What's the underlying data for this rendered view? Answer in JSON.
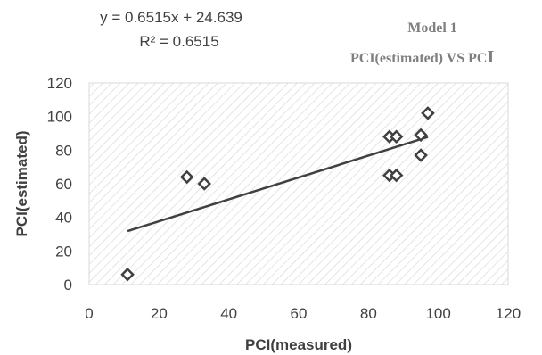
{
  "chart_data": {
    "type": "scatter",
    "title_line1": "Model 1",
    "title_line2": "PCI(estimated) VS PC",
    "title_line2_tail": "I",
    "xlabel": "PCI(measured)",
    "ylabel": "PCI(estimated)",
    "xlim": [
      0,
      120
    ],
    "ylim": [
      0,
      120
    ],
    "xticks": [
      "0",
      "20",
      "40",
      "60",
      "80",
      "100",
      "120"
    ],
    "yticks": [
      "0",
      "20",
      "40",
      "60",
      "80",
      "100",
      "120"
    ],
    "grid": "diagonal hatch",
    "series": [
      {
        "marker": "diamond",
        "points": [
          {
            "x": 11,
            "y": 6
          },
          {
            "x": 28,
            "y": 64
          },
          {
            "x": 33,
            "y": 60
          },
          {
            "x": 86,
            "y": 88
          },
          {
            "x": 88,
            "y": 88
          },
          {
            "x": 86,
            "y": 65
          },
          {
            "x": 88,
            "y": 65
          },
          {
            "x": 95,
            "y": 89
          },
          {
            "x": 95,
            "y": 77
          },
          {
            "x": 97,
            "y": 102
          }
        ]
      }
    ],
    "trendline": {
      "slope": 0.6515,
      "intercept": 24.639,
      "x_range": [
        11,
        97
      ],
      "equation": "y = 0.6515x + 24.639",
      "r2": "R² = 0.6515"
    },
    "colors": {
      "marker": "#404040",
      "trendline": "#404040",
      "hatch": "#d9d9d9",
      "text": "#404040",
      "title": "#7f7f7f"
    }
  }
}
